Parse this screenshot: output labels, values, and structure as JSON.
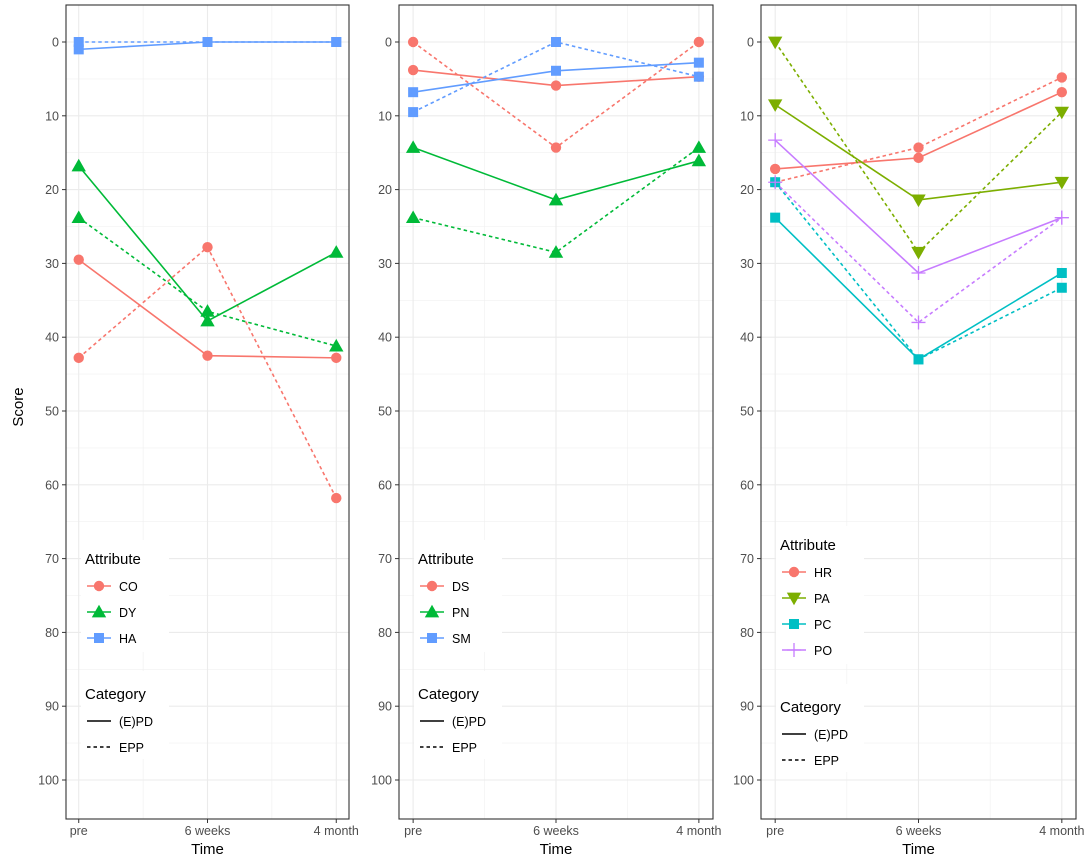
{
  "chart_data": [
    {
      "type": "line",
      "x": [
        "pre",
        "6 weeks",
        "4 month"
      ],
      "xlabel": "Time",
      "ylabel": "Score",
      "ylim": [
        0,
        100
      ],
      "y_reversed": true,
      "yticks": [
        0,
        10,
        20,
        30,
        40,
        50,
        60,
        70,
        80,
        90,
        100
      ],
      "legend_title_attribute": "Attribute",
      "legend_title_category": "Category",
      "attributes": [
        {
          "name": "CO",
          "color": "#f8766d",
          "shape": "circle"
        },
        {
          "name": "DY",
          "color": "#00ba38",
          "shape": "triangle"
        },
        {
          "name": "HA",
          "color": "#619cff",
          "shape": "square"
        }
      ],
      "categories": [
        {
          "name": "(E)PD",
          "linetype": "solid"
        },
        {
          "name": "EPP",
          "linetype": "dashed"
        }
      ],
      "series": [
        {
          "attribute": "CO",
          "category": "(E)PD",
          "values": [
            29.5,
            42.5,
            42.8
          ]
        },
        {
          "attribute": "CO",
          "category": "EPP",
          "values": [
            42.8,
            27.8,
            61.8
          ]
        },
        {
          "attribute": "DY",
          "category": "(E)PD",
          "values": [
            16.8,
            37.8,
            28.5
          ]
        },
        {
          "attribute": "DY",
          "category": "EPP",
          "values": [
            23.8,
            36.5,
            41.2
          ]
        },
        {
          "attribute": "HA",
          "category": "(E)PD",
          "values": [
            1.0,
            0.0,
            0.0
          ]
        },
        {
          "attribute": "HA",
          "category": "EPP",
          "values": [
            0.0,
            0.0,
            0.0
          ]
        }
      ]
    },
    {
      "type": "line",
      "x": [
        "pre",
        "6 weeks",
        "4 month"
      ],
      "xlabel": "Time",
      "ylabel": "Score",
      "ylim": [
        0,
        100
      ],
      "y_reversed": true,
      "yticks": [
        0,
        10,
        20,
        30,
        40,
        50,
        60,
        70,
        80,
        90,
        100
      ],
      "legend_title_attribute": "Attribute",
      "legend_title_category": "Category",
      "attributes": [
        {
          "name": "DS",
          "color": "#f8766d",
          "shape": "circle"
        },
        {
          "name": "PN",
          "color": "#00ba38",
          "shape": "triangle"
        },
        {
          "name": "SM",
          "color": "#619cff",
          "shape": "square"
        }
      ],
      "categories": [
        {
          "name": "(E)PD",
          "linetype": "solid"
        },
        {
          "name": "EPP",
          "linetype": "dashed"
        }
      ],
      "series": [
        {
          "attribute": "DS",
          "category": "(E)PD",
          "values": [
            3.8,
            5.9,
            4.7
          ]
        },
        {
          "attribute": "DS",
          "category": "EPP",
          "values": [
            0.0,
            14.3,
            0.0
          ]
        },
        {
          "attribute": "PN",
          "category": "(E)PD",
          "values": [
            14.3,
            21.4,
            16.1
          ]
        },
        {
          "attribute": "PN",
          "category": "EPP",
          "values": [
            23.8,
            28.5,
            14.3
          ]
        },
        {
          "attribute": "SM",
          "category": "(E)PD",
          "values": [
            6.8,
            3.9,
            2.8
          ]
        },
        {
          "attribute": "SM",
          "category": "EPP",
          "values": [
            9.5,
            0.0,
            4.7
          ]
        }
      ]
    },
    {
      "type": "line",
      "x": [
        "pre",
        "6 weeks",
        "4 month"
      ],
      "xlabel": "Time",
      "ylabel": "Score",
      "ylim": [
        0,
        100
      ],
      "y_reversed": true,
      "yticks": [
        0,
        10,
        20,
        30,
        40,
        50,
        60,
        70,
        80,
        90,
        100
      ],
      "legend_title_attribute": "Attribute",
      "legend_title_category": "Category",
      "attributes": [
        {
          "name": "HR",
          "color": "#f8766d",
          "shape": "circle"
        },
        {
          "name": "PA",
          "color": "#7cae00",
          "shape": "triangle-down"
        },
        {
          "name": "PC",
          "color": "#00bfc4",
          "shape": "square"
        },
        {
          "name": "PO",
          "color": "#c77cff",
          "shape": "plus"
        }
      ],
      "categories": [
        {
          "name": "(E)PD",
          "linetype": "solid"
        },
        {
          "name": "EPP",
          "linetype": "dashed"
        }
      ],
      "series": [
        {
          "attribute": "HR",
          "category": "(E)PD",
          "values": [
            17.2,
            15.7,
            6.8
          ]
        },
        {
          "attribute": "HR",
          "category": "EPP",
          "values": [
            19.0,
            14.3,
            4.8
          ]
        },
        {
          "attribute": "PA",
          "category": "(E)PD",
          "values": [
            8.5,
            21.4,
            19.0
          ]
        },
        {
          "attribute": "PA",
          "category": "EPP",
          "values": [
            0.0,
            28.5,
            9.5
          ]
        },
        {
          "attribute": "PC",
          "category": "(E)PD",
          "values": [
            23.8,
            43.0,
            31.3
          ]
        },
        {
          "attribute": "PC",
          "category": "EPP",
          "values": [
            19.0,
            43.0,
            33.3
          ]
        },
        {
          "attribute": "PO",
          "category": "(E)PD",
          "values": [
            13.3,
            31.3,
            23.8
          ]
        },
        {
          "attribute": "PO",
          "category": "EPP",
          "values": [
            19.0,
            38.0,
            23.8
          ]
        }
      ]
    }
  ]
}
